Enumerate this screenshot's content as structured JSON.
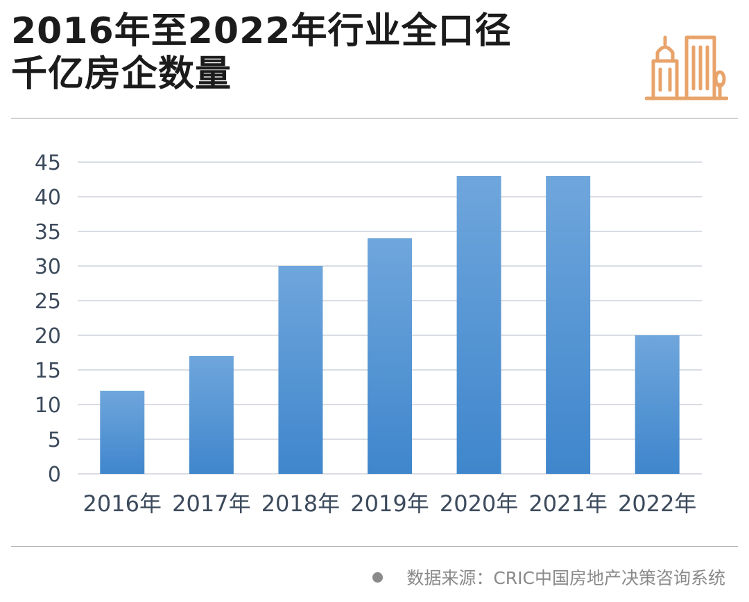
{
  "title": {
    "line1": "2016年至2022年行业全口径",
    "line2": "千亿房企数量"
  },
  "logo_icon": "city-buildings-icon",
  "source": {
    "text": "数据来源：CRIC中国房地产决策咨询系统"
  },
  "colors": {
    "bar_top": "#6fa6dc",
    "bar_bottom": "#3f86cc",
    "grid": "#d9dde3",
    "logo": "#e8a36a"
  },
  "chart_data": {
    "type": "bar",
    "title": "2016年至2022年行业全口径千亿房企数量",
    "categories": [
      "2016年",
      "2017年",
      "2018年",
      "2019年",
      "2020年",
      "2021年",
      "2022年"
    ],
    "values": [
      12,
      17,
      30,
      34,
      43,
      43,
      20
    ],
    "y_ticks": [
      0,
      5,
      10,
      15,
      20,
      25,
      30,
      35,
      40,
      45
    ],
    "ylim": [
      0,
      45
    ],
    "xlabel": "",
    "ylabel": "",
    "grid": true,
    "legend": "none"
  }
}
